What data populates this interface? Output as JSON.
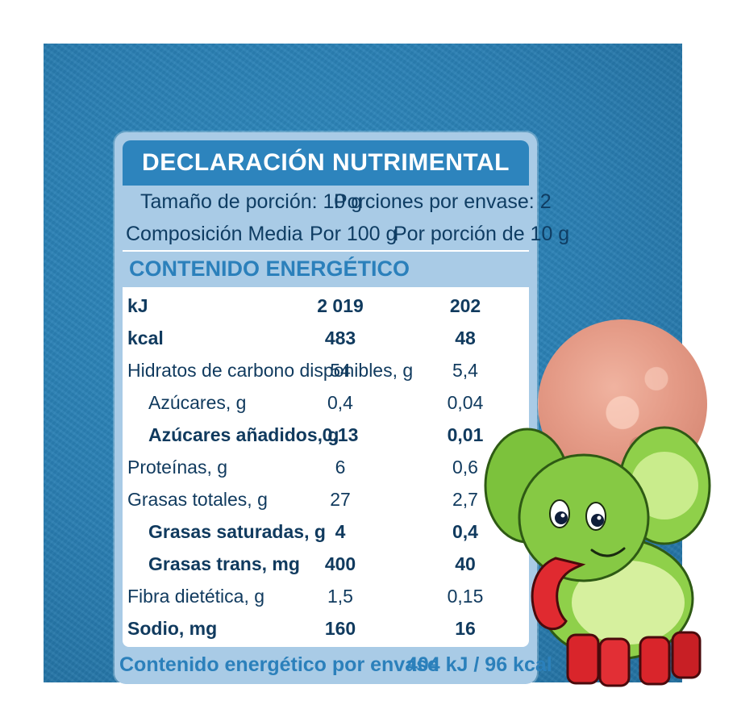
{
  "label": {
    "title": "DECLARACIÓN NUTRIMENTAL",
    "serving_size": "Tamaño de porción: 10 g",
    "servings_per_container": "Porciones por envase: 2",
    "composition_header": "Composición Media",
    "per_100g_header": "Por 100 g",
    "per_serving_header": "Por porción de 10 g",
    "section_energy": "CONTENIDO ENERGÉTICO",
    "rows": [
      {
        "label": "kJ",
        "per100": "2 019",
        "perServing": "202"
      },
      {
        "label": "kcal",
        "per100": "483",
        "perServing": "48"
      },
      {
        "label": "Hidratos de carbono disponibles, g",
        "per100": "54",
        "perServing": "5,4"
      },
      {
        "label": "Azúcares, g",
        "per100": "0,4",
        "perServing": "0,04"
      },
      {
        "label": "Azúcares añadidos, g",
        "per100": "0,13",
        "perServing": "0,01"
      },
      {
        "label": "Proteínas, g",
        "per100": "6",
        "perServing": "0,6"
      },
      {
        "label": "Grasas totales, g",
        "per100": "27",
        "perServing": "2,7"
      },
      {
        "label": "Grasas saturadas, g",
        "per100": "4",
        "perServing": "0,4"
      },
      {
        "label": "Grasas trans, mg",
        "per100": "400",
        "perServing": "40"
      },
      {
        "label": "Fibra dietética, g",
        "per100": "1,5",
        "perServing": "0,15"
      },
      {
        "label": "Sodio, mg",
        "per100": "160",
        "perServing": "16"
      }
    ],
    "footer_label": "Contenido energético por envase",
    "footer_value": "404 kJ / 96 kcal"
  },
  "colors": {
    "background": "#2a7fb3",
    "card": "#a9cbe6",
    "title_bar": "#2d84bd",
    "accent_text": "#2b80bb",
    "dark_text": "#103a5e"
  },
  "illustration": {
    "icons": [
      "cookie-icon",
      "lime-elephant-mascot-icon"
    ]
  }
}
